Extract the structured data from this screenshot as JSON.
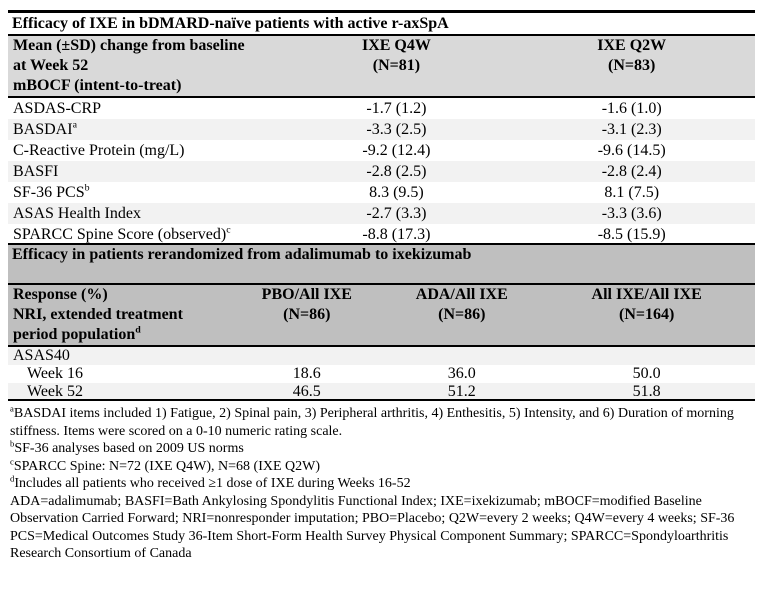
{
  "colors": {
    "header_grey": "#d9d9d9",
    "section_header_grey": "#bfbfbf",
    "alt_row_grey": "#f2f2f2",
    "border": "#000000"
  },
  "table": {
    "section1": {
      "title": "Efficacy of IXE in bDMARD-naïve patients with active r-axSpA",
      "header": {
        "label_line1": "Mean (±SD) change from baseline",
        "label_line2": "at Week 52",
        "label_line3": "mBOCF (intent-to-treat)",
        "col_q4w_line1": "IXE Q4W",
        "col_q4w_line2": "(N=81)",
        "col_q2w_line1": "IXE Q2W",
        "col_q2w_line2": "(N=83)"
      },
      "rows": [
        {
          "label": "ASDAS-CRP",
          "sup": "",
          "q4w": "-1.7 (1.2)",
          "q2w": "-1.6 (1.0)"
        },
        {
          "label": "BASDAI",
          "sup": "a",
          "q4w": "-3.3 (2.5)",
          "q2w": "-3.1 (2.3)"
        },
        {
          "label": "C-Reactive Protein (mg/L)",
          "sup": "",
          "q4w": "-9.2 (12.4)",
          "q2w": "-9.6 (14.5)"
        },
        {
          "label": "BASFI",
          "sup": "",
          "q4w": "-2.8 (2.5)",
          "q2w": "-2.8 (2.4)"
        },
        {
          "label": "SF-36 PCS",
          "sup": "b",
          "q4w": "8.3 (9.5)",
          "q2w": "8.1 (7.5)"
        },
        {
          "label": "ASAS Health Index",
          "sup": "",
          "q4w": "-2.7 (3.3)",
          "q2w": "-3.3 (3.6)"
        },
        {
          "label": "SPARCC Spine Score (observed)",
          "sup": "c",
          "q4w": "-8.8 (17.3)",
          "q2w": "-8.5 (15.9)"
        }
      ]
    },
    "section2": {
      "title": "Efficacy in patients rerandomized from adalimumab to ixekizumab",
      "header": {
        "label_line1": "Response (%)",
        "label_line2": "NRI, extended treatment",
        "label_line3": "period population",
        "label_sup": "d",
        "col_pbo_line1": "PBO/All IXE",
        "col_pbo_line2": "(N=86)",
        "col_ada_line1": "ADA/All IXE",
        "col_ada_line2": "(N=86)",
        "col_allixe_line1": "All IXE/All IXE",
        "col_allixe_line2": "(N=164)"
      },
      "group_label": "ASAS40",
      "rows": [
        {
          "label": "Week 16",
          "pbo": "18.6",
          "ada": "36.0",
          "allixe": "50.0"
        },
        {
          "label": "Week 52",
          "pbo": "46.5",
          "ada": "51.2",
          "allixe": "51.8"
        }
      ]
    }
  },
  "footnotes": [
    {
      "marker": "a",
      "text": "BASDAI items included 1) Fatigue, 2) Spinal pain, 3) Peripheral arthritis, 4) Enthesitis, 5) Intensity, and 6) Duration of morning stiffness. Items were scored on a 0-10 numeric rating scale."
    },
    {
      "marker": "b",
      "text": "SF-36 analyses based on 2009 US norms"
    },
    {
      "marker": "c",
      "text": "SPARCC Spine: N=72 (IXE Q4W), N=68 (IXE Q2W)"
    },
    {
      "marker": "d",
      "text": "Includes all patients who received ≥1 dose of IXE during Weeks 16-52"
    },
    {
      "marker": "",
      "text": "ADA=adalimumab; BASFI=Bath Ankylosing Spondylitis Functional Index; IXE=ixekizumab; mBOCF=modified Baseline Observation Carried Forward; NRI=nonresponder imputation; PBO=Placebo; Q2W=every 2 weeks; Q4W=every 4 weeks; SF-36 PCS=Medical Outcomes Study 36-Item Short-Form Health Survey Physical Component Summary; SPARCC=Spondyloarthritis Research Consortium of Canada"
    }
  ]
}
